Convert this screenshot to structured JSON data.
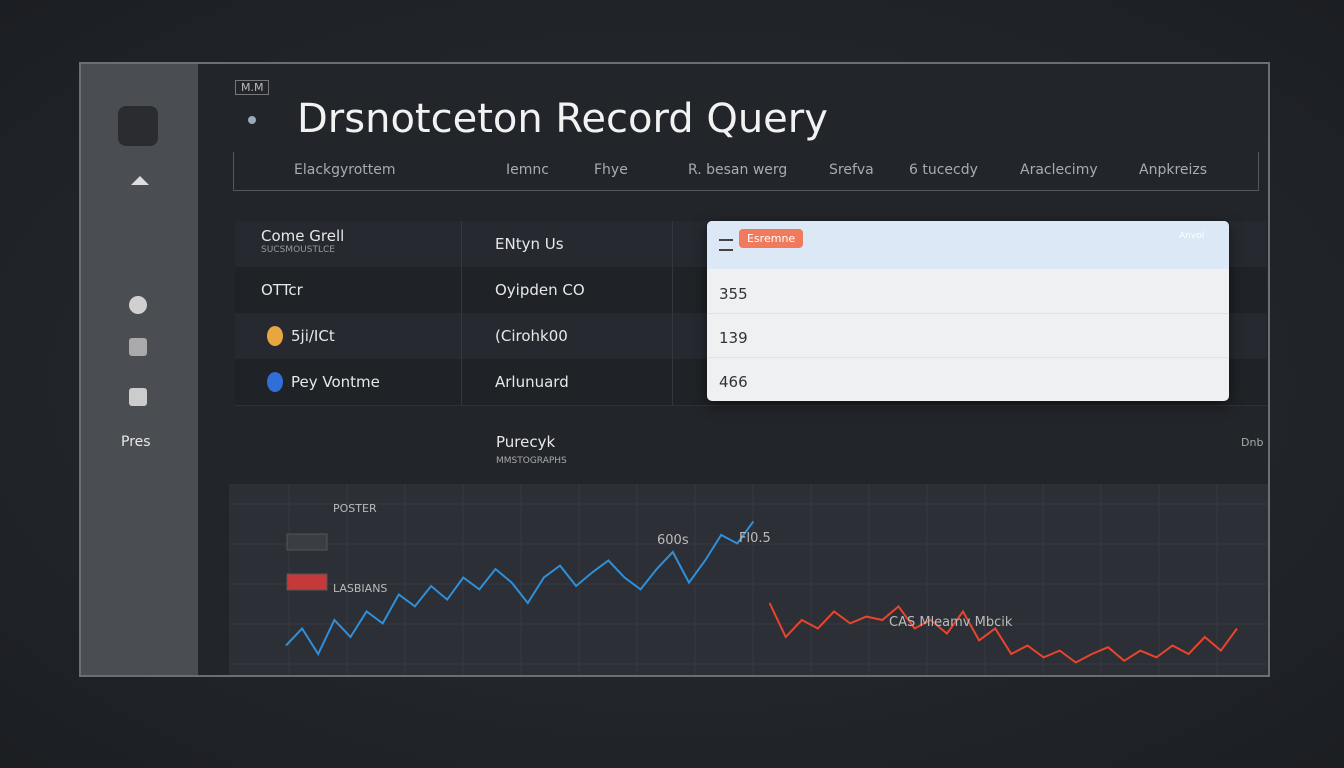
{
  "header": {
    "badge": "M.M",
    "title": "Drsnotceton Record Query",
    "tabs": [
      "Elackgyrottem",
      "Iemnc",
      "Fhye",
      "R. besan werg",
      "Srefva",
      "6 tucecdy",
      "Araclecimy",
      "Anpkreizs"
    ]
  },
  "sidebar": {
    "label": "Pres"
  },
  "table": {
    "subtitle": "SUCSMOUSTLCE",
    "rows": [
      [
        "Come Grell",
        "ENtyn Us"
      ],
      [
        "OTTcr",
        "Oyipden CO"
      ],
      [
        "5ji/ICt",
        "(Cirohk00"
      ],
      [
        "Pey Vontme",
        "Arlunuard"
      ]
    ]
  },
  "dropdown": {
    "badge": "Esremne",
    "header_right": "Anvol",
    "options": [
      "355",
      "139",
      "466"
    ]
  },
  "section": {
    "title": "Purecyk",
    "subtitle": "MMSTOGRAPHS",
    "right": "Dnb"
  },
  "chart": {
    "type": "line",
    "legend": [
      "POSTER",
      "LASBIANS"
    ],
    "annotations": [
      "600s",
      "Fl0.5",
      "CAS Mleamv Mbcik"
    ],
    "ylim": [
      0,
      100
    ],
    "series": [
      {
        "color": "#2f8fd8",
        "values": [
          15,
          25,
          10,
          30,
          20,
          35,
          28,
          45,
          38,
          50,
          42,
          55,
          48,
          60,
          52,
          40,
          55,
          62,
          50,
          58,
          65,
          55,
          48,
          60,
          70,
          52,
          65,
          80,
          75,
          88,
          null,
          null,
          null,
          null,
          null,
          null,
          null,
          null,
          null,
          null,
          null,
          null,
          null,
          null,
          null,
          null,
          null,
          null,
          null,
          null,
          null,
          null,
          null,
          null,
          null,
          null,
          null,
          null,
          null,
          null
        ]
      },
      {
        "color": "#e8452c",
        "values": [
          null,
          null,
          null,
          null,
          null,
          null,
          null,
          null,
          null,
          null,
          null,
          null,
          null,
          null,
          null,
          null,
          null,
          null,
          null,
          null,
          null,
          null,
          null,
          null,
          null,
          null,
          null,
          null,
          null,
          null,
          40,
          20,
          30,
          25,
          35,
          28,
          32,
          30,
          38,
          25,
          30,
          22,
          35,
          18,
          25,
          10,
          15,
          8,
          12,
          5,
          10,
          14,
          6,
          12,
          8,
          15,
          10,
          20,
          12,
          25
        ]
      }
    ]
  }
}
